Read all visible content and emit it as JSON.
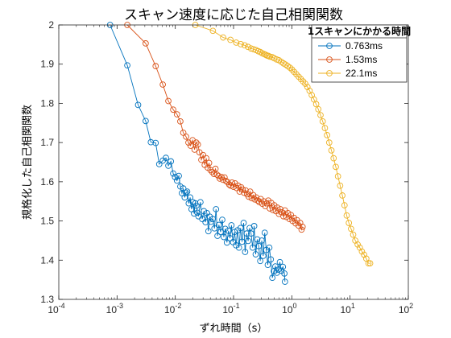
{
  "chart_data": {
    "type": "scatter",
    "title": "スキャン速度に応じた自己相関関数",
    "xlabel": "ずれ時間（s）",
    "ylabel": "規格化した自己相関関数",
    "xscale": "log",
    "xlim": [
      0.0001,
      100
    ],
    "ylim": [
      1.3,
      2.0
    ],
    "grid": false,
    "legend_position": "top-right",
    "legend_title": "1スキャンにかかる時間",
    "x_ticks": [
      {
        "value": 0.0001,
        "base": "10",
        "exp": "-4"
      },
      {
        "value": 0.001,
        "base": "10",
        "exp": "-3"
      },
      {
        "value": 0.01,
        "base": "10",
        "exp": "-2"
      },
      {
        "value": 0.1,
        "base": "10",
        "exp": "-1"
      },
      {
        "value": 1,
        "base": "10",
        "exp": "0"
      },
      {
        "value": 10,
        "base": "10",
        "exp": "1"
      },
      {
        "value": 100,
        "base": "10",
        "exp": "2"
      }
    ],
    "y_ticks": [
      {
        "value": 1.3,
        "label": "1.3"
      },
      {
        "value": 1.4,
        "label": "1.4"
      },
      {
        "value": 1.5,
        "label": "1.5"
      },
      {
        "value": 1.6,
        "label": "1.6"
      },
      {
        "value": 1.7,
        "label": "1.7"
      },
      {
        "value": 1.8,
        "label": "1.8"
      },
      {
        "value": 1.9,
        "label": "1.9"
      },
      {
        "value": 2.0,
        "label": "2"
      }
    ],
    "series": [
      {
        "name": "0.763ms",
        "color": "#0072BD",
        "marker": "circle",
        "x": [
          0.00076,
          0.0015,
          0.0023,
          0.0031,
          0.0038,
          0.0046,
          0.0053,
          0.0061,
          0.0069,
          0.0076,
          0.0084,
          0.0092,
          0.0099,
          0.0107,
          0.0115,
          0.0122,
          0.013,
          0.0137,
          0.0145,
          0.0153,
          0.016,
          0.017,
          0.018,
          0.019,
          0.02,
          0.021,
          0.022,
          0.023,
          0.024,
          0.025,
          0.027,
          0.029,
          0.031,
          0.033,
          0.035,
          0.037,
          0.039,
          0.041,
          0.044,
          0.047,
          0.05,
          0.053,
          0.056,
          0.06,
          0.064,
          0.068,
          0.072,
          0.077,
          0.082,
          0.087,
          0.092,
          0.098,
          0.104,
          0.11,
          0.117,
          0.124,
          0.132,
          0.14,
          0.149,
          0.158,
          0.168,
          0.178,
          0.189,
          0.2,
          0.213,
          0.226,
          0.24,
          0.255,
          0.27,
          0.287,
          0.305,
          0.323,
          0.343,
          0.364,
          0.387,
          0.411,
          0.436,
          0.463,
          0.492,
          0.522,
          0.554,
          0.588,
          0.624,
          0.663,
          0.703,
          0.746,
          0.763
        ],
        "y": [
          2.0,
          1.897,
          1.796,
          1.755,
          1.701,
          1.699,
          1.645,
          1.654,
          1.661,
          1.641,
          1.652,
          1.621,
          1.612,
          1.603,
          1.615,
          1.588,
          1.571,
          1.583,
          1.56,
          1.572,
          1.575,
          1.545,
          1.56,
          1.53,
          1.548,
          1.519,
          1.545,
          1.539,
          1.521,
          1.512,
          1.548,
          1.505,
          1.525,
          1.497,
          1.52,
          1.474,
          1.511,
          1.498,
          1.505,
          1.481,
          1.53,
          1.462,
          1.49,
          1.472,
          1.503,
          1.459,
          1.48,
          1.445,
          1.475,
          1.456,
          1.489,
          1.446,
          1.472,
          1.438,
          1.476,
          1.432,
          1.482,
          1.447,
          1.495,
          1.421,
          1.468,
          1.449,
          1.482,
          1.468,
          1.432,
          1.487,
          1.415,
          1.453,
          1.436,
          1.398,
          1.45,
          1.411,
          1.47,
          1.426,
          1.388,
          1.432,
          1.402,
          1.355,
          1.372,
          1.384,
          1.368,
          1.376,
          1.395,
          1.373,
          1.383,
          1.366,
          1.345
        ]
      },
      {
        "name": "1.53ms",
        "color": "#D95319",
        "marker": "circle",
        "x": [
          0.0015,
          0.0031,
          0.0046,
          0.0061,
          0.0076,
          0.0092,
          0.0107,
          0.0122,
          0.0137,
          0.0153,
          0.0168,
          0.0183,
          0.0198,
          0.0214,
          0.0229,
          0.0244,
          0.026,
          0.028,
          0.03,
          0.032,
          0.034,
          0.036,
          0.038,
          0.04,
          0.043,
          0.046,
          0.049,
          0.052,
          0.055,
          0.058,
          0.062,
          0.066,
          0.07,
          0.074,
          0.079,
          0.084,
          0.089,
          0.094,
          0.1,
          0.106,
          0.113,
          0.12,
          0.127,
          0.135,
          0.143,
          0.152,
          0.161,
          0.171,
          0.182,
          0.193,
          0.205,
          0.218,
          0.231,
          0.245,
          0.26,
          0.276,
          0.293,
          0.311,
          0.33,
          0.35,
          0.372,
          0.395,
          0.419,
          0.445,
          0.472,
          0.501,
          0.532,
          0.565,
          0.6,
          0.637,
          0.676,
          0.718,
          0.762,
          0.809,
          0.859,
          0.912,
          0.968,
          1.03,
          1.09,
          1.16,
          1.23,
          1.31,
          1.39,
          1.47,
          1.53
        ],
        "y": [
          2.0,
          1.953,
          1.895,
          1.848,
          1.806,
          1.784,
          1.772,
          1.754,
          1.725,
          1.715,
          1.7,
          1.692,
          1.706,
          1.682,
          1.7,
          1.695,
          1.675,
          1.656,
          1.668,
          1.643,
          1.66,
          1.636,
          1.648,
          1.63,
          1.625,
          1.62,
          1.633,
          1.618,
          1.615,
          1.608,
          1.612,
          1.605,
          1.611,
          1.602,
          1.599,
          1.593,
          1.59,
          1.598,
          1.587,
          1.596,
          1.584,
          1.59,
          1.575,
          1.586,
          1.58,
          1.572,
          1.578,
          1.568,
          1.562,
          1.575,
          1.558,
          1.566,
          1.555,
          1.56,
          1.552,
          1.548,
          1.556,
          1.544,
          1.55,
          1.538,
          1.545,
          1.552,
          1.532,
          1.546,
          1.528,
          1.54,
          1.525,
          1.534,
          1.518,
          1.53,
          1.522,
          1.512,
          1.527,
          1.51,
          1.52,
          1.505,
          1.515,
          1.5,
          1.508,
          1.494,
          1.502,
          1.488,
          1.495,
          1.478,
          1.485
        ]
      },
      {
        "name": "22.1ms",
        "color": "#EDB120",
        "marker": "circle",
        "x": [
          0.0221,
          0.0442,
          0.0663,
          0.0884,
          0.111,
          0.133,
          0.155,
          0.177,
          0.199,
          0.221,
          0.243,
          0.265,
          0.287,
          0.309,
          0.332,
          0.354,
          0.376,
          0.398,
          0.42,
          0.46,
          0.5,
          0.55,
          0.6,
          0.66,
          0.72,
          0.78,
          0.85,
          0.93,
          1.01,
          1.1,
          1.2,
          1.31,
          1.43,
          1.56,
          1.7,
          1.85,
          2.02,
          2.2,
          2.4,
          2.62,
          2.85,
          3.11,
          3.39,
          3.7,
          4.03,
          4.39,
          4.79,
          5.22,
          5.69,
          6.2,
          6.76,
          7.37,
          8.03,
          8.75,
          9.54,
          10.4,
          11.3,
          12.3,
          13.5,
          14.7,
          16.0,
          17.4,
          19.0,
          20.7,
          22.1
        ],
        "y": [
          2.0,
          1.985,
          1.968,
          1.962,
          1.955,
          1.951,
          1.948,
          1.944,
          1.94,
          1.938,
          1.936,
          1.933,
          1.931,
          1.928,
          1.926,
          1.924,
          1.922,
          1.921,
          1.919,
          1.918,
          1.915,
          1.912,
          1.91,
          1.906,
          1.902,
          1.899,
          1.895,
          1.891,
          1.886,
          1.88,
          1.874,
          1.868,
          1.862,
          1.856,
          1.85,
          1.842,
          1.832,
          1.821,
          1.81,
          1.798,
          1.785,
          1.77,
          1.754,
          1.737,
          1.719,
          1.7,
          1.68,
          1.66,
          1.638,
          1.614,
          1.59,
          1.565,
          1.54,
          1.514,
          1.495,
          1.48,
          1.465,
          1.45,
          1.44,
          1.432,
          1.422,
          1.414,
          1.404,
          1.392,
          1.392
        ]
      }
    ]
  }
}
